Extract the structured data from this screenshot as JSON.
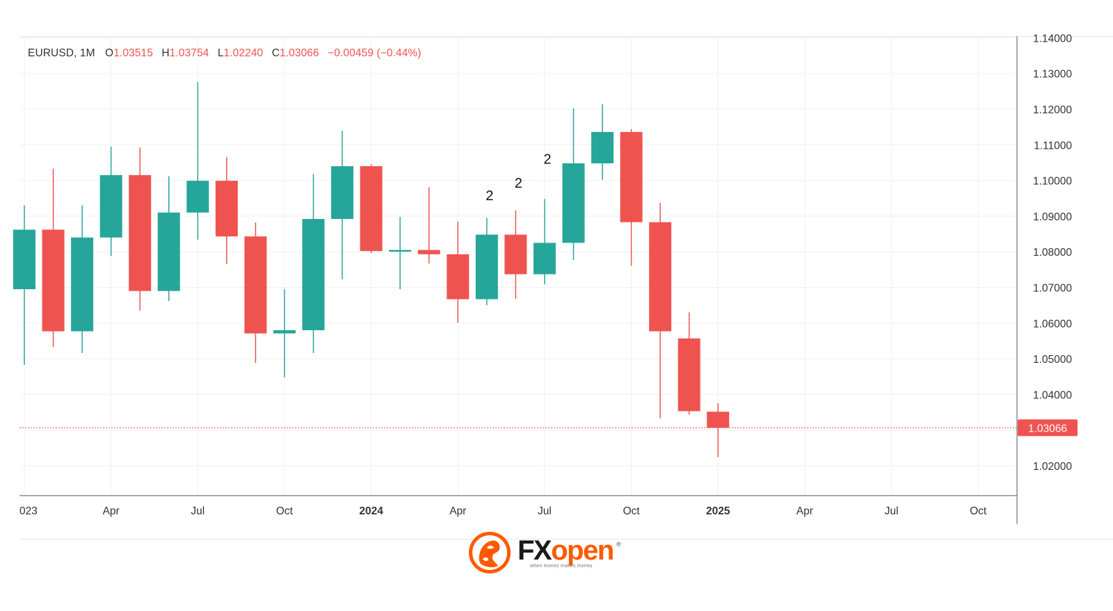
{
  "header": {
    "symbol": "EURUSD, 1M",
    "o_label": "O",
    "o_value": "1.03515",
    "h_label": "H",
    "h_value": "1.03754",
    "l_label": "L",
    "l_value": "1.02240",
    "c_label": "C",
    "c_value": "1.03066",
    "change": "−0.00459 (−0.44%)"
  },
  "logo": {
    "brand_fx": "FX",
    "brand_open": "open",
    "registered": "®",
    "tagline": "when money makes money"
  },
  "colors": {
    "up": "#26a69a",
    "down": "#ef5350",
    "grid": "#f0f0f0",
    "axis_text": "#333333",
    "price_tag_bg": "#ef5350",
    "brand_orange": "#ff5a00"
  },
  "chart_data": {
    "type": "candlestick",
    "timeframe": "1M",
    "symbol": "EURUSD",
    "ylim": [
      1.011,
      1.14
    ],
    "y_ticks": [
      1.02,
      1.03,
      1.04,
      1.05,
      1.06,
      1.07,
      1.08,
      1.09,
      1.1,
      1.11,
      1.12,
      1.13,
      1.14
    ],
    "y_tick_labels": [
      "1.02000",
      "1.03000",
      "1.04000",
      "1.05000",
      "1.06000",
      "1.07000",
      "1.08000",
      "1.09000",
      "1.10000",
      "1.11000",
      "1.12000",
      "1.13000",
      "1.14000"
    ],
    "x_ticks": [
      {
        "label": "023",
        "month": "2023-01",
        "bold": false
      },
      {
        "label": "Apr",
        "month": "2023-04",
        "bold": false
      },
      {
        "label": "Jul",
        "month": "2023-07",
        "bold": false
      },
      {
        "label": "Oct",
        "month": "2023-10",
        "bold": false
      },
      {
        "label": "2024",
        "month": "2024-01",
        "bold": true
      },
      {
        "label": "Apr",
        "month": "2024-04",
        "bold": false
      },
      {
        "label": "Jul",
        "month": "2024-07",
        "bold": false
      },
      {
        "label": "Oct",
        "month": "2024-10",
        "bold": false
      },
      {
        "label": "2025",
        "month": "2025-01",
        "bold": true
      },
      {
        "label": "Apr",
        "month": "2025-04",
        "bold": false
      },
      {
        "label": "Jul",
        "month": "2025-07",
        "bold": false
      },
      {
        "label": "Oct",
        "month": "2025-10",
        "bold": false
      }
    ],
    "x_range": [
      "2023-01",
      "2025-12"
    ],
    "last_price": 1.03066,
    "last_price_label": "1.03066",
    "candles": [
      {
        "month": "2023-01",
        "o": 1.0695,
        "h": 1.093,
        "l": 1.0483,
        "c": 1.0862
      },
      {
        "month": "2023-02",
        "o": 1.0862,
        "h": 1.1033,
        "l": 1.0533,
        "c": 1.0577
      },
      {
        "month": "2023-03",
        "o": 1.0577,
        "h": 1.093,
        "l": 1.0516,
        "c": 1.084
      },
      {
        "month": "2023-04",
        "o": 1.084,
        "h": 1.1095,
        "l": 1.0788,
        "c": 1.1015
      },
      {
        "month": "2023-05",
        "o": 1.1015,
        "h": 1.1092,
        "l": 1.0635,
        "c": 1.069
      },
      {
        "month": "2023-06",
        "o": 1.069,
        "h": 1.1012,
        "l": 1.0662,
        "c": 1.091
      },
      {
        "month": "2023-07",
        "o": 1.091,
        "h": 1.1276,
        "l": 1.0834,
        "c": 1.0999
      },
      {
        "month": "2023-08",
        "o": 1.0999,
        "h": 1.1065,
        "l": 1.0766,
        "c": 1.0843
      },
      {
        "month": "2023-09",
        "o": 1.0843,
        "h": 1.0882,
        "l": 1.0488,
        "c": 1.0571
      },
      {
        "month": "2023-10",
        "o": 1.0571,
        "h": 1.0695,
        "l": 1.0448,
        "c": 1.058
      },
      {
        "month": "2023-11",
        "o": 1.058,
        "h": 1.1018,
        "l": 1.0516,
        "c": 1.0892
      },
      {
        "month": "2023-12",
        "o": 1.0892,
        "h": 1.1139,
        "l": 1.0723,
        "c": 1.104
      },
      {
        "month": "2024-01",
        "o": 1.104,
        "h": 1.1046,
        "l": 1.0796,
        "c": 1.0802
      },
      {
        "month": "2024-02",
        "o": 1.0802,
        "h": 1.0898,
        "l": 1.0695,
        "c": 1.0805
      },
      {
        "month": "2024-03",
        "o": 1.0805,
        "h": 1.0981,
        "l": 1.0767,
        "c": 1.0793
      },
      {
        "month": "2024-04",
        "o": 1.0793,
        "h": 1.0885,
        "l": 1.0601,
        "c": 1.0667
      },
      {
        "month": "2024-05",
        "o": 1.0667,
        "h": 1.0895,
        "l": 1.065,
        "c": 1.0848
      },
      {
        "month": "2024-06",
        "o": 1.0848,
        "h": 1.0916,
        "l": 1.0668,
        "c": 1.0737
      },
      {
        "month": "2024-07",
        "o": 1.0737,
        "h": 1.0948,
        "l": 1.0709,
        "c": 1.0825
      },
      {
        "month": "2024-08",
        "o": 1.0825,
        "h": 1.1202,
        "l": 1.0777,
        "c": 1.1048
      },
      {
        "month": "2024-09",
        "o": 1.1048,
        "h": 1.1214,
        "l": 1.1002,
        "c": 1.1136
      },
      {
        "month": "2024-10",
        "o": 1.1136,
        "h": 1.1144,
        "l": 1.0761,
        "c": 1.0883
      },
      {
        "month": "2024-11",
        "o": 1.0883,
        "h": 1.0937,
        "l": 1.0333,
        "c": 1.0577
      },
      {
        "month": "2024-12",
        "o": 1.0557,
        "h": 1.063,
        "l": 1.0343,
        "c": 1.0353
      },
      {
        "month": "2025-01",
        "o": 1.03515,
        "h": 1.03754,
        "l": 1.0224,
        "c": 1.03066
      }
    ],
    "annotations": [
      {
        "text": "2",
        "month": "2024-05",
        "price": 1.0945
      },
      {
        "text": "2",
        "month": "2024-06",
        "price": 1.098
      },
      {
        "text": "2",
        "month": "2024-07",
        "price": 1.1047
      }
    ]
  }
}
